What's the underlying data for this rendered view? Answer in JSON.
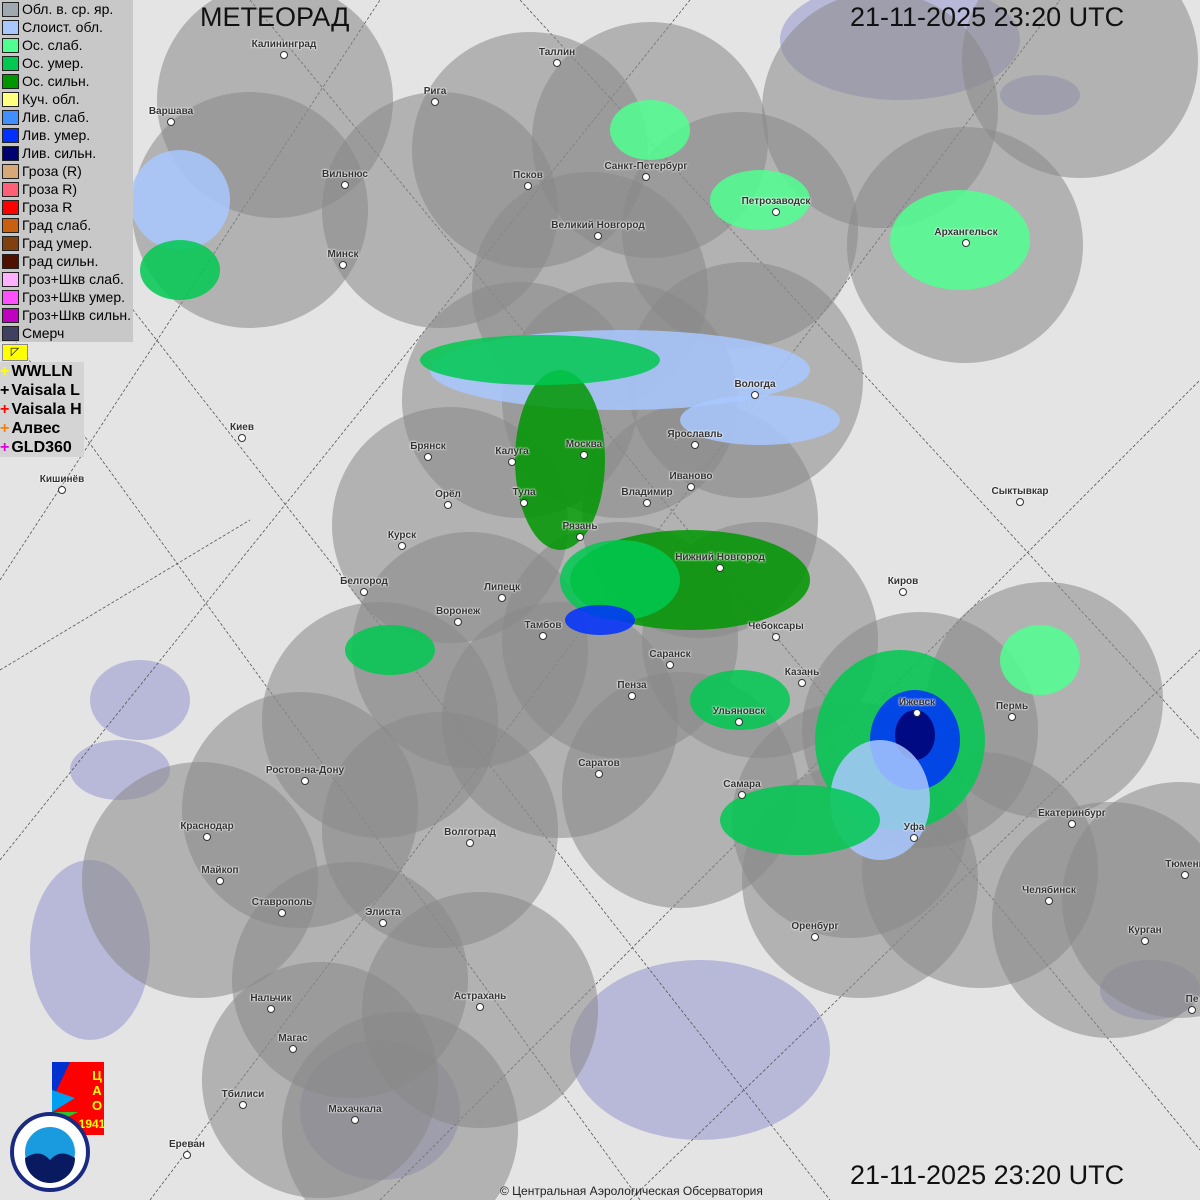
{
  "title": "МЕТЕОРАД",
  "timestamp_top": "21-11-2025  23:20 UTC",
  "timestamp_bottom": "21-11-2025  23:20 UTC",
  "copyright": "© Центральная Аэрологическая Обсерватория",
  "legend": [
    {
      "label": "Обл. в. ср. яр.",
      "color": "#a0a8b0"
    },
    {
      "label": "Слоист. обл.",
      "color": "#a8c8ff"
    },
    {
      "label": "Ос. слаб.",
      "color": "#50ff90"
    },
    {
      "label": "Ос. умер.",
      "color": "#00c850"
    },
    {
      "label": "Ос. сильн.",
      "color": "#009600"
    },
    {
      "label": "Куч. обл.",
      "color": "#ffff80"
    },
    {
      "label": "Лив. слаб.",
      "color": "#4090ff"
    },
    {
      "label": "Лив. умер.",
      "color": "#0030ff"
    },
    {
      "label": "Лив. сильн.",
      "color": "#000070"
    },
    {
      "label": "Гроза (R)",
      "color": "#d8a878"
    },
    {
      "label": "Гроза R)",
      "color": "#ff6078"
    },
    {
      "label": "Гроза R",
      "color": "#ff0000"
    },
    {
      "label": "Град слаб.",
      "color": "#c86010"
    },
    {
      "label": "Град умер.",
      "color": "#804010"
    },
    {
      "label": "Град сильн.",
      "color": "#501000"
    },
    {
      "label": "Гроз+Шкв слаб.",
      "color": "#ffb0ff"
    },
    {
      "label": "Гроз+Шкв умер.",
      "color": "#ff50ff"
    },
    {
      "label": "Гроз+Шкв сильн.",
      "color": "#c000c0"
    },
    {
      "label": "Смерч",
      "color": "#404060"
    }
  ],
  "lightning": [
    {
      "label": "WWLLN",
      "color": "#ffff00"
    },
    {
      "label": "Vaisala L",
      "color": "#000000"
    },
    {
      "label": "Vaisala H",
      "color": "#ff0000"
    },
    {
      "label": "Алвес",
      "color": "#ff8000"
    },
    {
      "label": "GLD360",
      "color": "#e000e0"
    }
  ],
  "cities": [
    "Калининград",
    "Таллин",
    "Рига",
    "Варшава",
    "Санкт-Петербург",
    "Вильнюс",
    "Псков",
    "Петрозаводск",
    "Архангельск",
    "Великий Новгород",
    "Минск",
    "Вологда",
    "Киев",
    "Брянск",
    "Москва",
    "Ярославль",
    "Калуга",
    "Иваново",
    "Кишинёв",
    "Орёл",
    "Тула",
    "Владимир",
    "Сыктывкар",
    "Рязань",
    "Курск",
    "Нижний Новгород",
    "Киров",
    "Белгород",
    "Липецк",
    "Воронеж",
    "Тамбов",
    "Чебоксары",
    "Саранск",
    "Пермь",
    "Казань",
    "Пенза",
    "Ижевск",
    "Ульяновск",
    "Ростов-на-Дону",
    "Саратов",
    "Самара",
    "Екатеринбург",
    "Уфа",
    "Краснодар",
    "Волгоград",
    "Тюмень",
    "Майкоп",
    "Челябинск",
    "Ставрополь",
    "Элиста",
    "Оренбург",
    "Курган",
    "Нальчик",
    "Астрахань",
    "Магас",
    "Тбилиси",
    "Махачкала",
    "Ереван",
    "Пе"
  ],
  "logos": {
    "cao": "ЦАО 1941",
    "roshydromet": "РОСГИДРОМЕТ ROSHYDROMET"
  }
}
